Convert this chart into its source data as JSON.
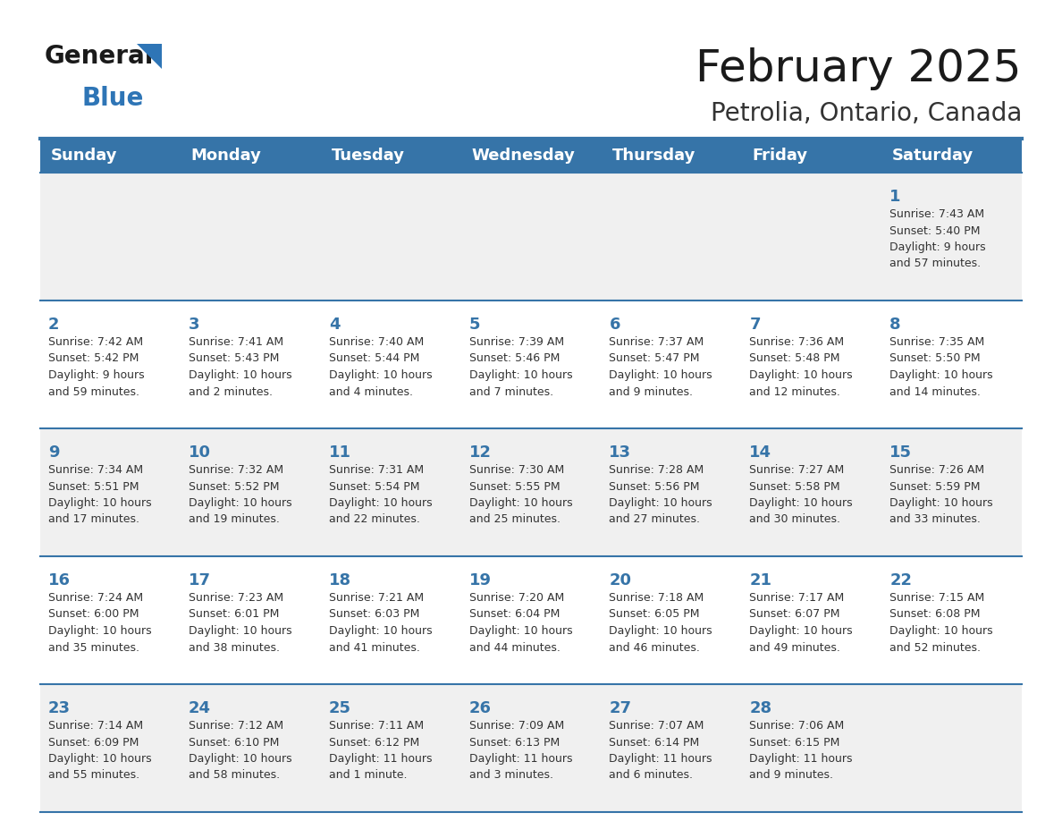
{
  "title": "February 2025",
  "subtitle": "Petrolia, Ontario, Canada",
  "days_of_week": [
    "Sunday",
    "Monday",
    "Tuesday",
    "Wednesday",
    "Thursday",
    "Friday",
    "Saturday"
  ],
  "header_bg": "#3674a8",
  "header_text_color": "#FFFFFF",
  "cell_bg_odd": "#F0F0F0",
  "cell_bg_even": "#FFFFFF",
  "cell_text_color": "#333333",
  "day_num_color": "#3674a8",
  "divider_color": "#3674a8",
  "logo_general_color": "#1a1a1a",
  "logo_blue_color": "#2E75B6",
  "title_color": "#1a1a1a",
  "subtitle_color": "#333333",
  "weeks": [
    [
      {
        "day": null,
        "info": null
      },
      {
        "day": null,
        "info": null
      },
      {
        "day": null,
        "info": null
      },
      {
        "day": null,
        "info": null
      },
      {
        "day": null,
        "info": null
      },
      {
        "day": null,
        "info": null
      },
      {
        "day": 1,
        "info": "Sunrise: 7:43 AM\nSunset: 5:40 PM\nDaylight: 9 hours\nand 57 minutes."
      }
    ],
    [
      {
        "day": 2,
        "info": "Sunrise: 7:42 AM\nSunset: 5:42 PM\nDaylight: 9 hours\nand 59 minutes."
      },
      {
        "day": 3,
        "info": "Sunrise: 7:41 AM\nSunset: 5:43 PM\nDaylight: 10 hours\nand 2 minutes."
      },
      {
        "day": 4,
        "info": "Sunrise: 7:40 AM\nSunset: 5:44 PM\nDaylight: 10 hours\nand 4 minutes."
      },
      {
        "day": 5,
        "info": "Sunrise: 7:39 AM\nSunset: 5:46 PM\nDaylight: 10 hours\nand 7 minutes."
      },
      {
        "day": 6,
        "info": "Sunrise: 7:37 AM\nSunset: 5:47 PM\nDaylight: 10 hours\nand 9 minutes."
      },
      {
        "day": 7,
        "info": "Sunrise: 7:36 AM\nSunset: 5:48 PM\nDaylight: 10 hours\nand 12 minutes."
      },
      {
        "day": 8,
        "info": "Sunrise: 7:35 AM\nSunset: 5:50 PM\nDaylight: 10 hours\nand 14 minutes."
      }
    ],
    [
      {
        "day": 9,
        "info": "Sunrise: 7:34 AM\nSunset: 5:51 PM\nDaylight: 10 hours\nand 17 minutes."
      },
      {
        "day": 10,
        "info": "Sunrise: 7:32 AM\nSunset: 5:52 PM\nDaylight: 10 hours\nand 19 minutes."
      },
      {
        "day": 11,
        "info": "Sunrise: 7:31 AM\nSunset: 5:54 PM\nDaylight: 10 hours\nand 22 minutes."
      },
      {
        "day": 12,
        "info": "Sunrise: 7:30 AM\nSunset: 5:55 PM\nDaylight: 10 hours\nand 25 minutes."
      },
      {
        "day": 13,
        "info": "Sunrise: 7:28 AM\nSunset: 5:56 PM\nDaylight: 10 hours\nand 27 minutes."
      },
      {
        "day": 14,
        "info": "Sunrise: 7:27 AM\nSunset: 5:58 PM\nDaylight: 10 hours\nand 30 minutes."
      },
      {
        "day": 15,
        "info": "Sunrise: 7:26 AM\nSunset: 5:59 PM\nDaylight: 10 hours\nand 33 minutes."
      }
    ],
    [
      {
        "day": 16,
        "info": "Sunrise: 7:24 AM\nSunset: 6:00 PM\nDaylight: 10 hours\nand 35 minutes."
      },
      {
        "day": 17,
        "info": "Sunrise: 7:23 AM\nSunset: 6:01 PM\nDaylight: 10 hours\nand 38 minutes."
      },
      {
        "day": 18,
        "info": "Sunrise: 7:21 AM\nSunset: 6:03 PM\nDaylight: 10 hours\nand 41 minutes."
      },
      {
        "day": 19,
        "info": "Sunrise: 7:20 AM\nSunset: 6:04 PM\nDaylight: 10 hours\nand 44 minutes."
      },
      {
        "day": 20,
        "info": "Sunrise: 7:18 AM\nSunset: 6:05 PM\nDaylight: 10 hours\nand 46 minutes."
      },
      {
        "day": 21,
        "info": "Sunrise: 7:17 AM\nSunset: 6:07 PM\nDaylight: 10 hours\nand 49 minutes."
      },
      {
        "day": 22,
        "info": "Sunrise: 7:15 AM\nSunset: 6:08 PM\nDaylight: 10 hours\nand 52 minutes."
      }
    ],
    [
      {
        "day": 23,
        "info": "Sunrise: 7:14 AM\nSunset: 6:09 PM\nDaylight: 10 hours\nand 55 minutes."
      },
      {
        "day": 24,
        "info": "Sunrise: 7:12 AM\nSunset: 6:10 PM\nDaylight: 10 hours\nand 58 minutes."
      },
      {
        "day": 25,
        "info": "Sunrise: 7:11 AM\nSunset: 6:12 PM\nDaylight: 11 hours\nand 1 minute."
      },
      {
        "day": 26,
        "info": "Sunrise: 7:09 AM\nSunset: 6:13 PM\nDaylight: 11 hours\nand 3 minutes."
      },
      {
        "day": 27,
        "info": "Sunrise: 7:07 AM\nSunset: 6:14 PM\nDaylight: 11 hours\nand 6 minutes."
      },
      {
        "day": 28,
        "info": "Sunrise: 7:06 AM\nSunset: 6:15 PM\nDaylight: 11 hours\nand 9 minutes."
      },
      {
        "day": null,
        "info": null
      }
    ]
  ],
  "fig_width": 11.88,
  "fig_height": 9.18,
  "dpi": 100
}
